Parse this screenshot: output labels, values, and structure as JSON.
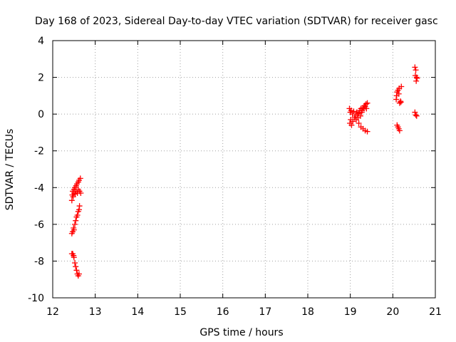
{
  "chart_data": {
    "type": "scatter",
    "title": "Day 168 of 2023, Sidereal Day-to-day VTEC variation (SDTVAR) for receiver gasc",
    "xlabel": "GPS time / hours",
    "ylabel": "SDTVAR / TECUs",
    "xlim": [
      12,
      21
    ],
    "ylim": [
      -10,
      4
    ],
    "xticks": [
      "12",
      "13",
      "14",
      "15",
      "16",
      "17",
      "18",
      "19",
      "20",
      "21"
    ],
    "yticks": [
      "-10",
      "-8",
      "-6",
      "-4",
      "-2",
      "0",
      "2",
      "4"
    ],
    "grid": true,
    "marker": "+",
    "series": [
      {
        "name": "SDTVAR",
        "color": "#ff0000",
        "points": [
          [
            12.45,
            -4.7
          ],
          [
            12.46,
            -4.4
          ],
          [
            12.47,
            -4.2
          ],
          [
            12.48,
            -4.5
          ],
          [
            12.5,
            -4.3
          ],
          [
            12.5,
            -4.1
          ],
          [
            12.52,
            -4.0
          ],
          [
            12.53,
            -4.35
          ],
          [
            12.55,
            -4.2
          ],
          [
            12.55,
            -3.9
          ],
          [
            12.57,
            -3.8
          ],
          [
            12.58,
            -4.3
          ],
          [
            12.6,
            -3.7
          ],
          [
            12.6,
            -4.1
          ],
          [
            12.62,
            -3.6
          ],
          [
            12.63,
            -4.2
          ],
          [
            12.65,
            -3.5
          ],
          [
            12.66,
            -4.3
          ],
          [
            12.45,
            -6.5
          ],
          [
            12.47,
            -6.4
          ],
          [
            12.49,
            -6.2
          ],
          [
            12.5,
            -6.3
          ],
          [
            12.52,
            -6.0
          ],
          [
            12.54,
            -5.8
          ],
          [
            12.56,
            -5.6
          ],
          [
            12.58,
            -5.5
          ],
          [
            12.6,
            -5.3
          ],
          [
            12.62,
            -5.2
          ],
          [
            12.63,
            -5.0
          ],
          [
            12.45,
            -7.6
          ],
          [
            12.47,
            -7.6
          ],
          [
            12.49,
            -7.7
          ],
          [
            12.5,
            -7.8
          ],
          [
            12.52,
            -8.1
          ],
          [
            12.54,
            -8.3
          ],
          [
            12.56,
            -8.5
          ],
          [
            12.58,
            -8.7
          ],
          [
            12.6,
            -8.8
          ],
          [
            12.62,
            -8.7
          ],
          [
            18.98,
            0.3
          ],
          [
            18.99,
            -0.5
          ],
          [
            19.0,
            0.1
          ],
          [
            19.01,
            -0.3
          ],
          [
            19.02,
            0.2
          ],
          [
            19.03,
            -0.6
          ],
          [
            19.05,
            0.0
          ],
          [
            19.06,
            -0.4
          ],
          [
            19.08,
            0.15
          ],
          [
            19.1,
            -0.2
          ],
          [
            19.12,
            -0.1
          ],
          [
            19.14,
            -0.3
          ],
          [
            19.15,
            0.1
          ],
          [
            19.17,
            0.0
          ],
          [
            19.18,
            -0.2
          ],
          [
            19.2,
            0.05
          ],
          [
            19.22,
            0.2
          ],
          [
            19.24,
            -0.1
          ],
          [
            19.25,
            0.3
          ],
          [
            19.27,
            0.1
          ],
          [
            19.28,
            0.2
          ],
          [
            19.3,
            0.35
          ],
          [
            19.32,
            0.3
          ],
          [
            19.33,
            0.45
          ],
          [
            19.35,
            0.4
          ],
          [
            19.37,
            0.55
          ],
          [
            19.38,
            0.3
          ],
          [
            19.4,
            0.6
          ],
          [
            19.25,
            -0.7
          ],
          [
            19.3,
            -0.8
          ],
          [
            19.35,
            -0.9
          ],
          [
            19.4,
            -0.95
          ],
          [
            19.2,
            -0.5
          ],
          [
            20.08,
            0.8
          ],
          [
            20.09,
            1.0
          ],
          [
            20.1,
            1.2
          ],
          [
            20.12,
            1.3
          ],
          [
            20.14,
            1.1
          ],
          [
            20.15,
            1.4
          ],
          [
            20.16,
            0.6
          ],
          [
            20.18,
            0.7
          ],
          [
            20.19,
            0.65
          ],
          [
            20.2,
            1.5
          ],
          [
            20.1,
            -0.6
          ],
          [
            20.12,
            -0.7
          ],
          [
            20.14,
            -0.8
          ],
          [
            20.16,
            -0.9
          ],
          [
            20.52,
            2.55
          ],
          [
            20.54,
            2.4
          ],
          [
            20.53,
            2.1
          ],
          [
            20.55,
            1.8
          ],
          [
            20.56,
            2.0
          ],
          [
            20.57,
            1.95
          ],
          [
            20.52,
            0.1
          ],
          [
            20.54,
            -0.05
          ],
          [
            20.56,
            -0.1
          ]
        ]
      }
    ]
  }
}
